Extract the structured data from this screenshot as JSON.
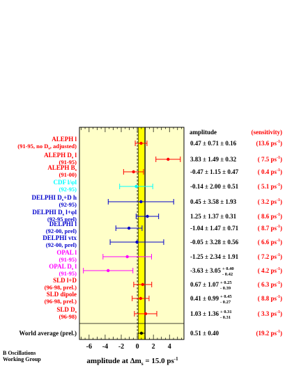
{
  "chart_data": {
    "type": "scatter",
    "xlabel_main": "amplitude at Δm",
    "xlabel_sub": "s",
    "xlabel_rest": " = 15.0 ps",
    "xlabel_sup": "-1",
    "xlim": [
      -7.2,
      5.8
    ],
    "x_ticks": [
      -6,
      -4,
      -2,
      0,
      2,
      4
    ],
    "column_headers": {
      "amplitude": "amplitude",
      "sensitivity": "(sensitivity)"
    },
    "band": {
      "center": 0.51,
      "half_width": 0.4
    },
    "unit_line": {
      "x": 1
    },
    "colors": {
      "panel_bg": "#ffffc8",
      "band": "#ffff00",
      "red": "#ff0000",
      "blue": "#0000cc",
      "cyan": "#00ffff",
      "magenta": "#ff00ff",
      "black": "#000000",
      "sens": "#ff0000"
    },
    "measurements": [
      {
        "name1": "ALEPH l",
        "name2": "(91-95, no D",
        "name2_sub": "s",
        "name2_rest": ", adjusted)",
        "color": "#ff0000",
        "amp_text": "0.47 ± 0.71 ± 0.16",
        "sens_text": "(13.6 ps",
        "x": 0.47,
        "err": 0.73,
        "errcolor": "#ff0000"
      },
      {
        "name1": "ALEPH D",
        "name1_sub": "s",
        "name1_rest": " l",
        "name2": "(91-95)",
        "color": "#ff0000",
        "amp_text": "3.83 ± 1.49 ± 0.32",
        "sens_text": "( 7.5 ps",
        "x": 3.83,
        "err": 1.52,
        "errcolor": "#ff0000"
      },
      {
        "name1": "ALEPH B",
        "name1_sub": "s",
        "name2": "(91-00)",
        "color": "#ff0000",
        "amp_text": "-0.47 ± 1.15 ± 0.47",
        "sens_text": "( 0.4 ps",
        "x": -0.47,
        "err": 1.24,
        "errcolor": "#ff0000"
      },
      {
        "name1": "CDF l/φl",
        "name2": "(92-95)",
        "color": "#00ffff",
        "amp_text": "-0.14 ± 2.00 ± 0.51",
        "sens_text": "( 5.1 ps",
        "x": -0.14,
        "err": 2.06,
        "errcolor": "#00ffff"
      },
      {
        "name1": "DELPHI D",
        "name1_sub": "s",
        "name1_rest": "+D h",
        "name2": "(92-95)",
        "color": "#0000cc",
        "amp_text": "0.45 ± 3.58 ± 1.93",
        "sens_text": "( 3.2 ps",
        "x": 0.45,
        "err": 4.07,
        "errcolor": "#0000cc"
      },
      {
        "name1": "DELPHI D",
        "name1_sub": "s",
        "name1_rest": " l+φl",
        "name2": "(92-95 prel)",
        "color": "#0000cc",
        "amp_text": "1.25 ± 1.37 ± 0.31",
        "sens_text": "( 8.6 ps",
        "x": 1.25,
        "err": 1.4,
        "errcolor": "#0000cc"
      },
      {
        "name1": "DELPHI l",
        "name2": "(92-00, prel)",
        "color": "#0000cc",
        "amp_text": "-1.04 ± 1.47 ± 0.71",
        "sens_text": "( 8.7 ps",
        "x": -1.04,
        "err": 1.63,
        "errcolor": "#0000cc"
      },
      {
        "name1": "DELPHI vtx",
        "name2": "(92-00, prel)",
        "color": "#0000cc",
        "amp_text": "-0.05 ± 3.28 ± 0.56",
        "sens_text": "( 6.6 ps",
        "x": -0.05,
        "err": 3.33,
        "errcolor": "#0000cc"
      },
      {
        "name1": "OPAL l",
        "name2": "(91-95)",
        "color": "#ff00ff",
        "amp_text": "-1.25 ± 2.34 ± 1.91",
        "sens_text": "( 7.2 ps",
        "x": -1.25,
        "err": 3.02,
        "errcolor": "#ff00ff"
      },
      {
        "name1": "OPAL D",
        "name1_sub": "s",
        "name1_rest": " l",
        "name2": "(91-95)",
        "color": "#ff00ff",
        "amp_text": "-3.63 ± 3.05",
        "amp_sup": "+ 0.40",
        "amp_subv": "- 0.42",
        "sens_text": "( 4.2 ps",
        "x": -3.63,
        "err": 3.08,
        "errcolor": "#ff00ff"
      },
      {
        "name1": "SLD l+D",
        "name2": "(96-98, prel.)",
        "color": "#ff0000",
        "amp_text": "0.67 ± 1.07",
        "amp_sup": "+ 0.25",
        "amp_subv": "- 0.39",
        "sens_text": "( 6.3 ps",
        "x": 0.67,
        "err": 1.12,
        "errcolor": "#ff0000"
      },
      {
        "name1": "SLD dipole",
        "name2": "(96-98, prel.)",
        "color": "#ff0000",
        "amp_text": "0.41 ± 0.99",
        "amp_sup": "+ 0.45",
        "amp_subv": "- 0.27",
        "sens_text": "( 8.8 ps",
        "x": 0.41,
        "err": 1.05,
        "errcolor": "#ff0000"
      },
      {
        "name1": "SLD D",
        "name1_sub": "s",
        "name2": "(96-98)",
        "color": "#ff0000",
        "amp_text": "1.03 ± 1.36",
        "amp_sup": "+ 0.31",
        "amp_subv": "- 0.31",
        "sens_text": "( 3.3 ps",
        "x": 1.03,
        "err": 1.39,
        "errcolor": "#ff0000"
      }
    ],
    "world_average": {
      "name": "World average (prel.)",
      "amp_text": "0.51 ± 0.40",
      "sens_text": "(19.2 ps",
      "x": 0.51,
      "err": 0.4
    },
    "sens_sup": "-1",
    "footer_line1": "B Oscillations",
    "footer_line2": "Working Group"
  }
}
